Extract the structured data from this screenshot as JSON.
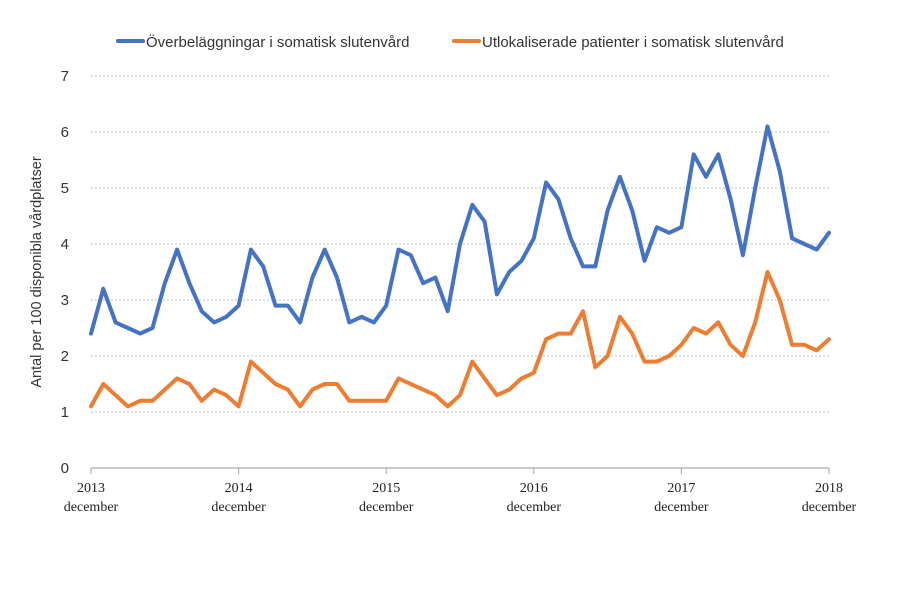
{
  "chart_data": {
    "type": "line",
    "title": "",
    "xlabel": "",
    "ylabel": "Antal per 100 disponibla vårdplatser",
    "ylim": [
      0,
      7
    ],
    "yticks": [
      "0",
      "1",
      "2",
      "3",
      "4",
      "5",
      "6",
      "7"
    ],
    "grid": true,
    "legend_position": "top",
    "x_ticks": [
      {
        "year": "2013",
        "month": "december"
      },
      {
        "year": "2014",
        "month": "december"
      },
      {
        "year": "2015",
        "month": "december"
      },
      {
        "year": "2016",
        "month": "december"
      },
      {
        "year": "2017",
        "month": "december"
      },
      {
        "year": "2018",
        "month": "december"
      }
    ],
    "series": [
      {
        "name": "Överbeläggningar i somatisk slutenvård",
        "color": "#4472C4",
        "values": [
          2.4,
          3.2,
          2.6,
          2.5,
          2.4,
          2.5,
          3.3,
          3.9,
          3.3,
          2.8,
          2.6,
          2.7,
          2.9,
          3.9,
          3.6,
          2.9,
          2.9,
          2.6,
          3.4,
          3.9,
          3.4,
          2.6,
          2.7,
          2.6,
          2.9,
          3.9,
          3.8,
          3.3,
          3.4,
          2.8,
          4.0,
          4.7,
          4.4,
          3.1,
          3.5,
          3.7,
          4.1,
          5.1,
          4.8,
          4.1,
          3.6,
          3.6,
          4.6,
          5.2,
          4.6,
          3.7,
          4.3,
          4.2,
          4.3,
          5.6,
          5.2,
          5.6,
          4.8,
          3.8,
          5.0,
          6.1,
          5.3,
          4.1,
          4.0,
          3.9,
          4.2
        ]
      },
      {
        "name": "Utlokaliserade patienter i somatisk slutenvård",
        "color": "#ED7D31",
        "values": [
          1.1,
          1.5,
          1.3,
          1.1,
          1.2,
          1.2,
          1.4,
          1.6,
          1.5,
          1.2,
          1.4,
          1.3,
          1.1,
          1.9,
          1.7,
          1.5,
          1.4,
          1.1,
          1.4,
          1.5,
          1.5,
          1.2,
          1.2,
          1.2,
          1.2,
          1.6,
          1.5,
          1.4,
          1.3,
          1.1,
          1.3,
          1.9,
          1.6,
          1.3,
          1.4,
          1.6,
          1.7,
          2.3,
          2.4,
          2.4,
          2.8,
          1.8,
          2.0,
          2.7,
          2.4,
          1.9,
          1.9,
          2.0,
          2.2,
          2.5,
          2.4,
          2.6,
          2.2,
          2.0,
          2.6,
          3.5,
          3.0,
          2.2,
          2.2,
          2.1,
          2.3
        ]
      }
    ]
  }
}
